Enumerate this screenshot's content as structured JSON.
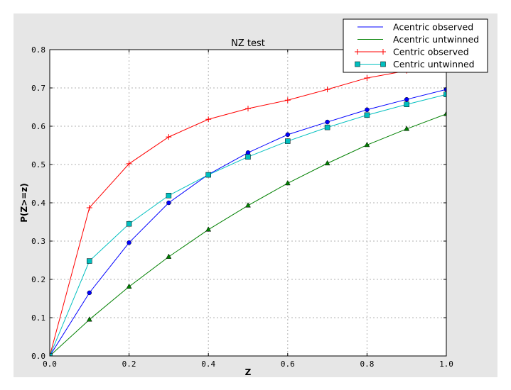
{
  "chart_data": {
    "type": "line",
    "title": "NZ test",
    "xlabel": "Z",
    "ylabel": "P(Z>=z)",
    "xlim": [
      0,
      1.0
    ],
    "ylim": [
      0,
      0.8
    ],
    "grid": true,
    "legend_position": "top-right",
    "xticks": [
      "0.0",
      "0.2",
      "0.4",
      "0.6",
      "0.8",
      "1.0"
    ],
    "yticks": [
      "0.0",
      "0.1",
      "0.2",
      "0.3",
      "0.4",
      "0.5",
      "0.6",
      "0.7",
      "0.8"
    ],
    "x": [
      0,
      0.1,
      0.2,
      0.3,
      0.4,
      0.5,
      0.6,
      0.7,
      0.8,
      0.9,
      1.0
    ],
    "series": [
      {
        "name": "Acentric observed",
        "color": "#0000ff",
        "marker": "circle",
        "values": [
          0,
          0.165,
          0.296,
          0.4,
          0.474,
          0.531,
          0.578,
          0.611,
          0.643,
          0.67,
          0.696
        ]
      },
      {
        "name": "Acentric untwinned",
        "color": "#008000",
        "marker": "triangle",
        "values": [
          0,
          0.095,
          0.181,
          0.259,
          0.33,
          0.393,
          0.451,
          0.503,
          0.551,
          0.593,
          0.632
        ]
      },
      {
        "name": "Centric observed",
        "color": "#ff0000",
        "marker": "plus",
        "values": [
          0,
          0.387,
          0.502,
          0.572,
          0.618,
          0.646,
          0.668,
          0.696,
          0.726,
          0.745,
          0.76
        ]
      },
      {
        "name": "Centric untwinned",
        "color": "#00bfbf",
        "marker": "square",
        "values": [
          0,
          0.248,
          0.345,
          0.419,
          0.473,
          0.52,
          0.561,
          0.597,
          0.629,
          0.657,
          0.683
        ]
      }
    ]
  }
}
